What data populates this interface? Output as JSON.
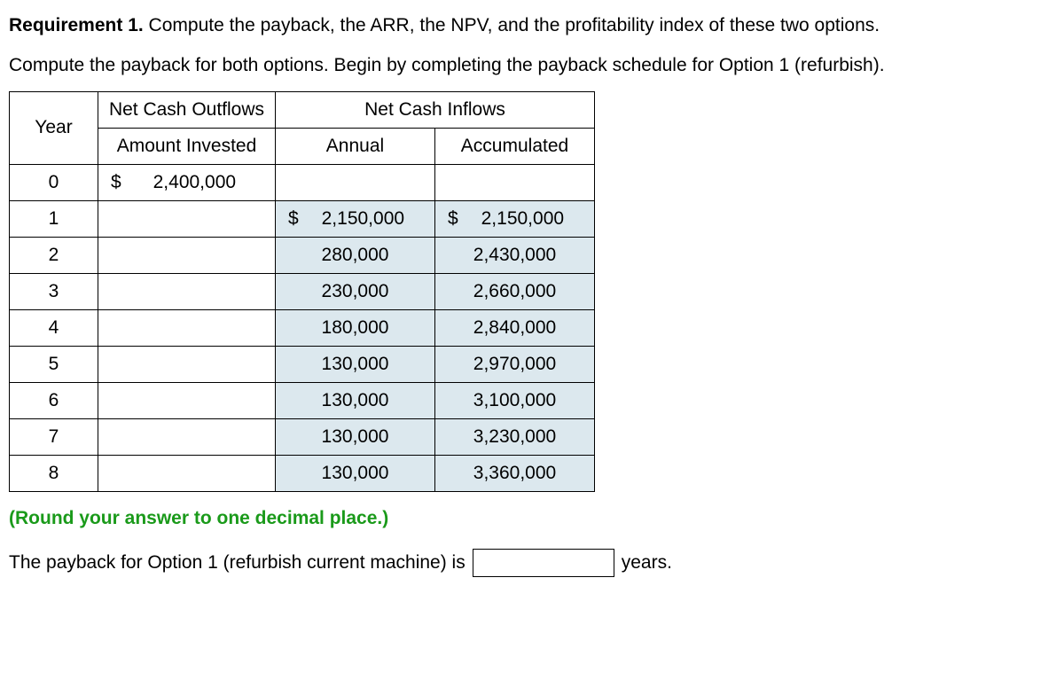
{
  "requirement": {
    "label": "Requirement 1.",
    "text": " Compute the payback, the ARR, the NPV, and the profitability index of these two options."
  },
  "instruction": "Compute the payback for both options. Begin by completing the payback schedule for Option 1 (refurbish).",
  "table": {
    "headers": {
      "outflows": "Net Cash Outflows",
      "inflows": "Net Cash Inflows",
      "year": "Year",
      "amount_invested": "Amount Invested",
      "annual": "Annual",
      "accumulated": "Accumulated"
    },
    "rows": [
      {
        "year": "0",
        "invested_currency": "$",
        "invested": "2,400,000",
        "annual_currency": "",
        "annual": "",
        "accum_currency": "",
        "accum": "",
        "highlight": false
      },
      {
        "year": "1",
        "invested_currency": "",
        "invested": "",
        "annual_currency": "$",
        "annual": "2,150,000",
        "accum_currency": "$",
        "accum": "2,150,000",
        "highlight": true
      },
      {
        "year": "2",
        "invested_currency": "",
        "invested": "",
        "annual_currency": "",
        "annual": "280,000",
        "accum_currency": "",
        "accum": "2,430,000",
        "highlight": true
      },
      {
        "year": "3",
        "invested_currency": "",
        "invested": "",
        "annual_currency": "",
        "annual": "230,000",
        "accum_currency": "",
        "accum": "2,660,000",
        "highlight": true
      },
      {
        "year": "4",
        "invested_currency": "",
        "invested": "",
        "annual_currency": "",
        "annual": "180,000",
        "accum_currency": "",
        "accum": "2,840,000",
        "highlight": true
      },
      {
        "year": "5",
        "invested_currency": "",
        "invested": "",
        "annual_currency": "",
        "annual": "130,000",
        "accum_currency": "",
        "accum": "2,970,000",
        "highlight": true
      },
      {
        "year": "6",
        "invested_currency": "",
        "invested": "",
        "annual_currency": "",
        "annual": "130,000",
        "accum_currency": "",
        "accum": "3,100,000",
        "highlight": true
      },
      {
        "year": "7",
        "invested_currency": "",
        "invested": "",
        "annual_currency": "",
        "annual": "130,000",
        "accum_currency": "",
        "accum": "3,230,000",
        "highlight": true
      },
      {
        "year": "8",
        "invested_currency": "",
        "invested": "",
        "annual_currency": "",
        "annual": "130,000",
        "accum_currency": "",
        "accum": "3,360,000",
        "highlight": true
      }
    ]
  },
  "round_note": "(Round your answer to one decimal place.)",
  "answer": {
    "prefix": "The payback for Option 1 (refurbish current machine) is",
    "value": "",
    "suffix": "years."
  },
  "colors": {
    "highlight_bg": "#dce8ee",
    "note_color": "#1a9a1a",
    "border": "#000000"
  }
}
